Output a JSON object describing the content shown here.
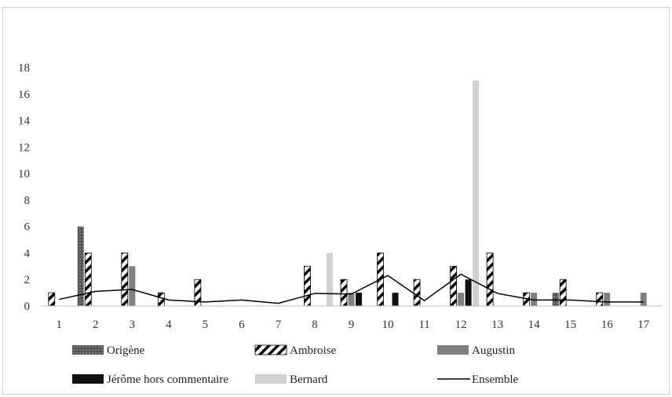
{
  "chart_data": {
    "type": "bar",
    "categories": [
      "1",
      "2",
      "3",
      "4",
      "5",
      "6",
      "7",
      "8",
      "9",
      "10",
      "11",
      "12",
      "13",
      "14",
      "15",
      "16",
      "17"
    ],
    "ylim": [
      0,
      18
    ],
    "yticks": [
      0,
      2,
      4,
      6,
      8,
      10,
      12,
      14,
      16,
      18
    ],
    "grid": false,
    "legend_position": "bottom",
    "series": [
      {
        "name": "Origène",
        "kind": "bar",
        "pattern": "dotted-dark",
        "color": "#555555",
        "values": [
          0,
          6,
          0,
          0,
          0,
          0,
          0,
          0,
          0,
          0,
          0,
          0,
          0,
          0,
          1,
          0,
          0
        ]
      },
      {
        "name": "Ambroise",
        "kind": "bar",
        "pattern": "diagonal-hatch",
        "color": "#000000",
        "values": [
          1,
          4,
          4,
          1,
          2,
          0,
          0,
          3,
          2,
          4,
          2,
          3,
          4,
          1,
          2,
          1,
          0
        ]
      },
      {
        "name": "Augustin",
        "kind": "bar",
        "pattern": "solid",
        "color": "#808080",
        "values": [
          0,
          0,
          3,
          0,
          0,
          0,
          0,
          0,
          1,
          0,
          0,
          1,
          0,
          1,
          0,
          1,
          1
        ]
      },
      {
        "name": "Jérôme hors commentaire",
        "kind": "bar",
        "pattern": "solid",
        "color": "#111111",
        "values": [
          0,
          0,
          0,
          0,
          0,
          0,
          0,
          0,
          1,
          1,
          0,
          2,
          0,
          0,
          0,
          0,
          0
        ]
      },
      {
        "name": "Bernard",
        "kind": "bar",
        "pattern": "solid",
        "color": "#d0d0d0",
        "values": [
          0,
          0,
          0,
          0,
          0,
          0,
          0,
          4,
          0,
          0,
          0,
          17,
          0,
          0,
          0,
          0,
          0
        ]
      },
      {
        "name": "Ensemble",
        "kind": "line",
        "color": "#000000",
        "values": [
          0.5,
          1.1,
          1.25,
          0.45,
          0.3,
          0.45,
          0.2,
          0.95,
          0.9,
          2.3,
          0.4,
          2.4,
          0.95,
          0.45,
          0.45,
          0.3,
          0.3
        ]
      }
    ]
  }
}
